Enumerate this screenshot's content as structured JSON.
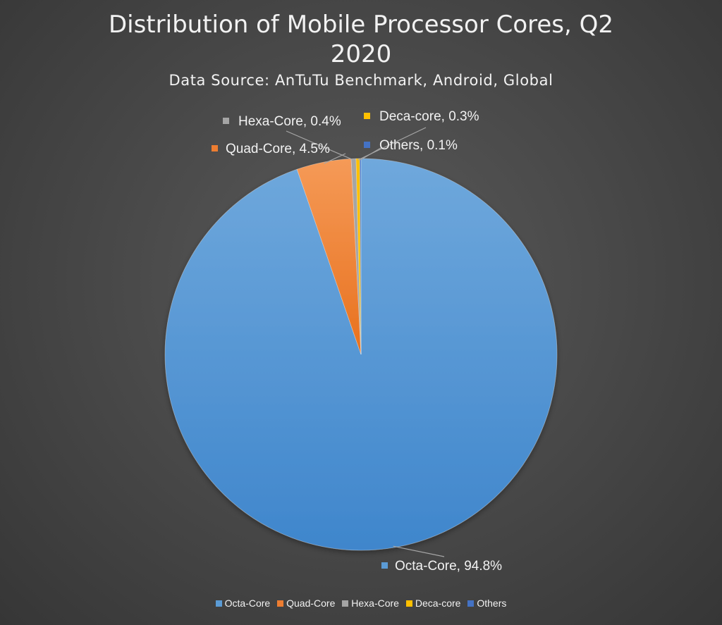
{
  "chart_data": {
    "type": "pie",
    "title": "Distribution of Mobile Processor Cores, Q2 2020",
    "title_lines": [
      "Distribution of Mobile Processor Cores, Q2",
      "2020"
    ],
    "subtitle": "Data Source: AnTuTu Benchmark, Android, Global",
    "categories": [
      "Octa-Core",
      "Quad-Core",
      "Hexa-Core",
      "Deca-core",
      "Others"
    ],
    "values": [
      94.8,
      4.5,
      0.4,
      0.3,
      0.1
    ],
    "data_labels": [
      "Octa-Core, 94.8%",
      "Quad-Core, 4.5%",
      "Hexa-Core, 0.4%",
      "Deca-core, 0.3%",
      "Others, 0.1%"
    ],
    "colors": [
      "#5b9bd5",
      "#ed7d31",
      "#a5a5a5",
      "#ffc000",
      "#4472c4"
    ],
    "legend_position": "bottom"
  }
}
